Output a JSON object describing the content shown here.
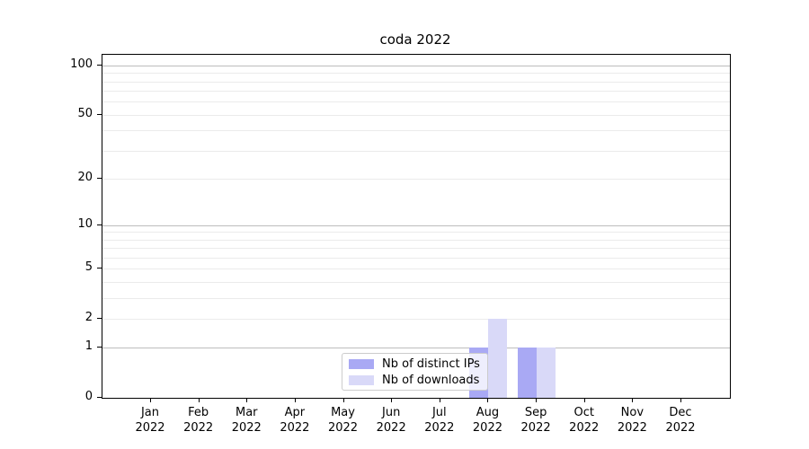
{
  "title": "coda 2022",
  "chart_data": {
    "type": "bar",
    "title": "coda 2022",
    "categories": [
      "Jan 2022",
      "Feb 2022",
      "Mar 2022",
      "Apr 2022",
      "May 2022",
      "Jun 2022",
      "Jul 2022",
      "Aug 2022",
      "Sep 2022",
      "Oct 2022",
      "Nov 2022",
      "Dec 2022"
    ],
    "month_labels": [
      "Jan",
      "Feb",
      "Mar",
      "Apr",
      "May",
      "Jun",
      "Jul",
      "Aug",
      "Sep",
      "Oct",
      "Nov",
      "Dec"
    ],
    "year": "2022",
    "series": [
      {
        "name": "Nb of distinct IPs",
        "color": "#a9a9f4",
        "values": [
          0,
          0,
          0,
          0,
          0,
          0,
          0,
          1,
          1,
          0,
          0,
          0
        ]
      },
      {
        "name": "Nb of downloads",
        "color": "#d9d9f8",
        "values": [
          0,
          0,
          0,
          0,
          0,
          0,
          0,
          2,
          1,
          0,
          0,
          0
        ]
      }
    ],
    "yscale": "log1p",
    "ylim": [
      0,
      116.3
    ],
    "yticks": [
      0,
      1,
      2,
      5,
      10,
      20,
      50,
      100
    ],
    "major_gridlines": [
      1,
      10,
      100
    ],
    "minor_gridlines": [
      2,
      3,
      4,
      5,
      6,
      7,
      8,
      9,
      20,
      30,
      40,
      50,
      60,
      70,
      80,
      90
    ],
    "grid": true,
    "legend_position": "lower center",
    "colors": {
      "major_grid": "#bdbdbd",
      "minor_grid": "#ebebeb",
      "spine": "#000000",
      "text": "#000000",
      "legend_border": "#cccccc"
    }
  }
}
